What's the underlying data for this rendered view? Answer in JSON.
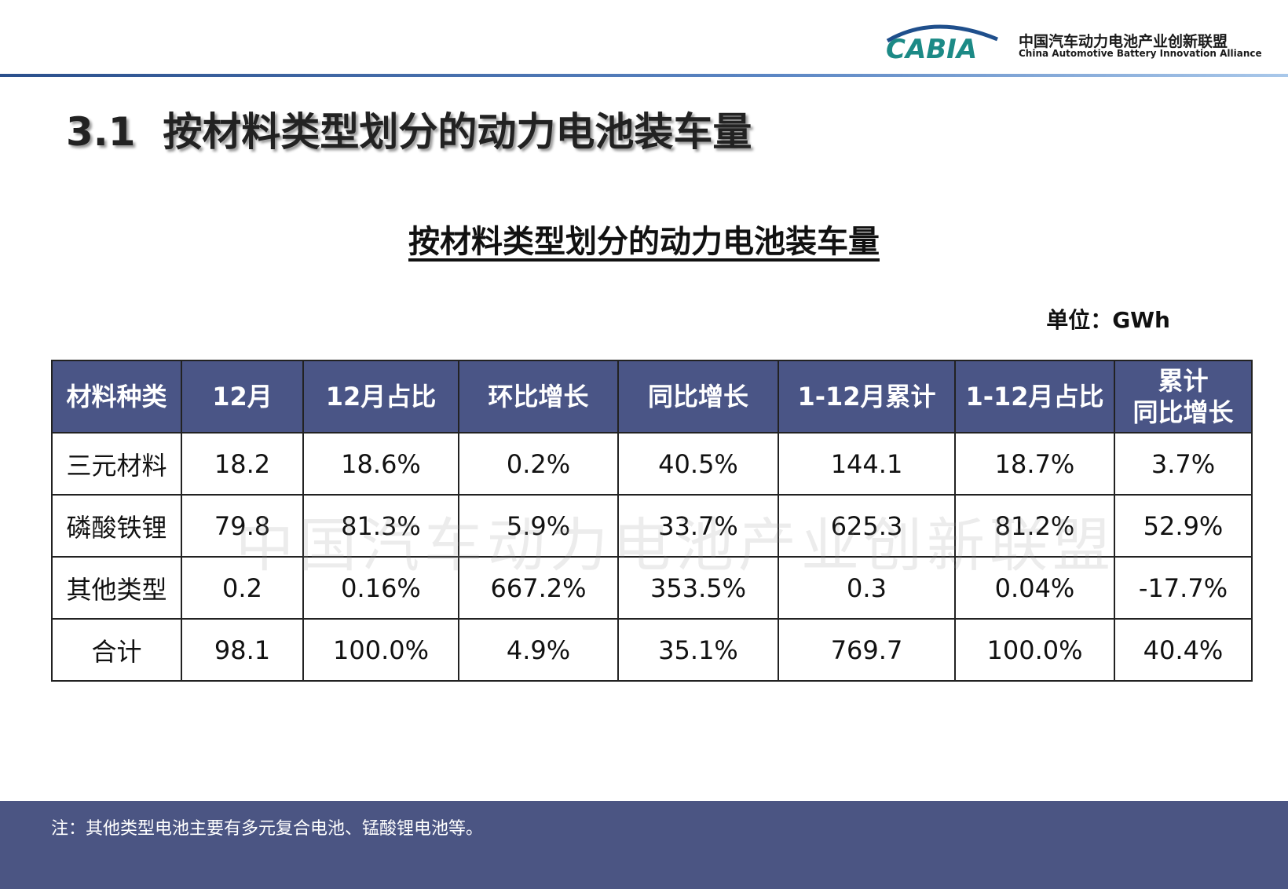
{
  "header": {
    "logo": "CABIA",
    "org_name": "中国汽车动力电池产业创新联盟",
    "org_name_en": "China Automotive Battery Innovation Alliance"
  },
  "title": "3.1  按材料类型划分的动力电池装车量",
  "table_title": "按材料类型划分的动力电池装车量",
  "unit": "单位：GWh",
  "watermark": "中国汽车动力电池产业创新联盟",
  "table": {
    "columns": [
      "材料种类",
      "12月",
      "12月占比",
      "环比增长",
      "同比增长",
      "1-12月累计",
      "1-12月占比",
      "累计\n同比增长"
    ],
    "rows": [
      [
        "三元材料",
        "18.2",
        "18.6%",
        "0.2%",
        "40.5%",
        "144.1",
        "18.7%",
        "3.7%"
      ],
      [
        "磷酸铁锂",
        "79.8",
        "81.3%",
        "5.9%",
        "33.7%",
        "625.3",
        "81.2%",
        "52.9%"
      ],
      [
        "其他类型",
        "0.2",
        "0.16%",
        "667.2%",
        "353.5%",
        "0.3",
        "0.04%",
        "-17.7%"
      ],
      [
        "合计",
        "98.1",
        "100.0%",
        "4.9%",
        "35.1%",
        "769.7",
        "100.0%",
        "40.4%"
      ]
    ]
  },
  "note": "注：其他类型电池主要有多元复合电池、锰酸锂电池等。"
}
